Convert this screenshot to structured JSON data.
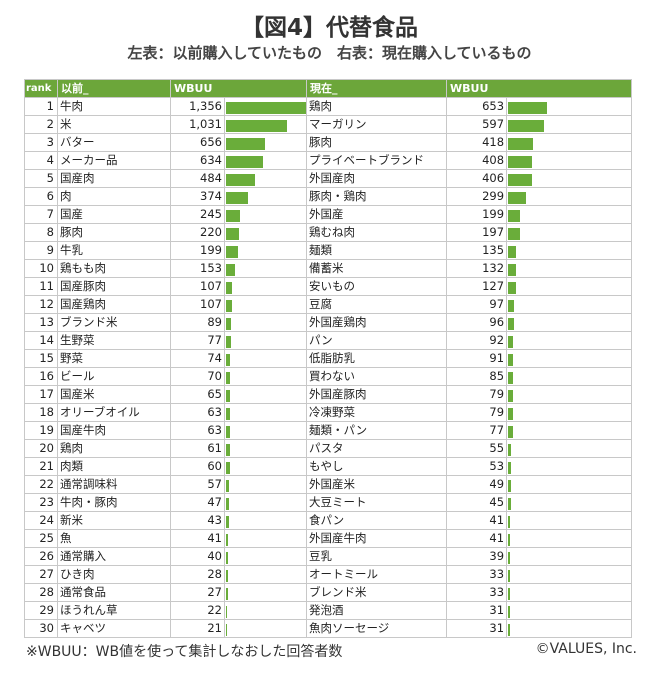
{
  "title": "【図4】代替食品",
  "subtitle": "左表：以前購入していたもの　右表：現在購入しているもの",
  "headers": {
    "rank": "rank",
    "before": "以前_",
    "before_value": "WBUU",
    "now": "現在_",
    "now_value": "WBUU"
  },
  "footnote": "※WBUU：WB値を使って集計しなおした回答者数",
  "credit": "©VALUES, Inc.",
  "colors": {
    "header": "#6ca63a",
    "bar": "#6aad3a"
  },
  "chart_data": {
    "type": "table",
    "ranks": [
      1,
      2,
      3,
      4,
      5,
      6,
      7,
      8,
      9,
      10,
      11,
      12,
      13,
      14,
      15,
      16,
      17,
      18,
      19,
      20,
      21,
      22,
      23,
      24,
      25,
      26,
      27,
      28,
      29,
      30
    ],
    "before": {
      "labels": [
        "牛肉",
        "米",
        "バター",
        "メーカー品",
        "国産肉",
        "肉",
        "国産",
        "豚肉",
        "牛乳",
        "鶏もも肉",
        "国産豚肉",
        "国産鶏肉",
        "ブランド米",
        "生野菜",
        "野菜",
        "ビール",
        "国産米",
        "オリーブオイル",
        "国産牛肉",
        "鶏肉",
        "肉類",
        "通常調味料",
        "牛肉・豚肉",
        "新米",
        "魚",
        "通常購入",
        "ひき肉",
        "通常食品",
        "ほうれん草",
        "キャベツ"
      ],
      "values": [
        1356,
        1031,
        656,
        634,
        484,
        374,
        245,
        220,
        199,
        153,
        107,
        107,
        89,
        77,
        74,
        70,
        65,
        63,
        63,
        61,
        60,
        57,
        47,
        43,
        41,
        40,
        28,
        27,
        22,
        21
      ],
      "display": [
        "1,356",
        "1,031",
        "656",
        "634",
        "484",
        "374",
        "245",
        "220",
        "199",
        "153",
        "107",
        "107",
        "89",
        "77",
        "74",
        "70",
        "65",
        "63",
        "63",
        "61",
        "60",
        "57",
        "47",
        "43",
        "41",
        "40",
        "28",
        "27",
        "22",
        "21"
      ]
    },
    "now": {
      "labels": [
        "鶏肉",
        "マーガリン",
        "豚肉",
        "プライベートブランド",
        "外国産肉",
        "豚肉・鶏肉",
        "外国産",
        "鶏むね肉",
        "麺類",
        "備蓄米",
        "安いもの",
        "豆腐",
        "外国産鶏肉",
        "パン",
        "低脂肪乳",
        "買わない",
        "外国産豚肉",
        "冷凍野菜",
        "麺類・パン",
        "パスタ",
        "もやし",
        "外国産米",
        "大豆ミート",
        "食パン",
        "外国産牛肉",
        "豆乳",
        "オートミール",
        "ブレンド米",
        "発泡酒",
        "魚肉ソーセージ"
      ],
      "values": [
        653,
        597,
        418,
        408,
        406,
        299,
        199,
        197,
        135,
        132,
        127,
        97,
        96,
        92,
        91,
        85,
        79,
        79,
        77,
        55,
        53,
        49,
        45,
        41,
        41,
        39,
        33,
        33,
        31,
        31
      ],
      "display": [
        "653",
        "597",
        "418",
        "408",
        "406",
        "299",
        "199",
        "197",
        "135",
        "132",
        "127",
        "97",
        "96",
        "92",
        "91",
        "85",
        "79",
        "79",
        "77",
        "55",
        "53",
        "49",
        "45",
        "41",
        "41",
        "39",
        "33",
        "33",
        "31",
        "31"
      ]
    }
  }
}
